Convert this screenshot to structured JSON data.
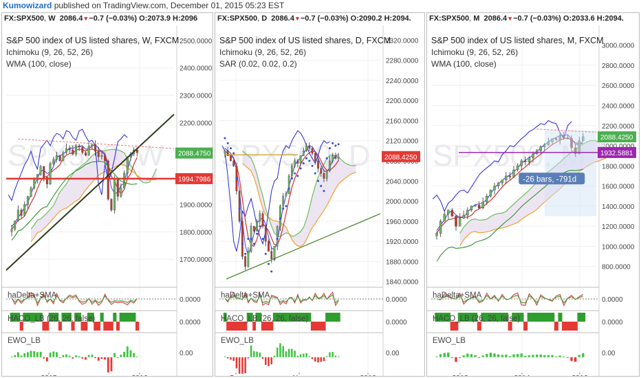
{
  "header": {
    "author": "Kumowizard",
    "published": "published on TradingView.com, December 01, 2015 05:23 EST"
  },
  "chart_data": [
    {
      "type": "candlestick",
      "symbol": "FX:SPX500",
      "timeframe": "W",
      "last": "2086.4",
      "change": "−0.7 (−0.03%)",
      "open": "2073.9",
      "high": "2096",
      "title": "S&P 500 index of US listed shares, W, FXCM",
      "indicators": [
        "Ichimoku (9, 26, 52, 26)",
        "WMA (100, close)"
      ],
      "watermark": "SPX500, W",
      "ylim": [
        1600,
        2520
      ],
      "yticks": [
        1700,
        1800,
        1900,
        2000,
        2100,
        2200,
        2300,
        2400,
        2500
      ],
      "ytick_labels": [
        "1700.0000",
        "1800.0000",
        "1900.0000",
        "2000.0000",
        "2100.0000",
        "2200.0000",
        "2300.0000",
        "2400.0000",
        "2500.0000"
      ],
      "xticks": [
        "2015",
        "2016"
      ],
      "price_label": {
        "value": "2088.4750",
        "color": "#4caf50"
      },
      "level_label": {
        "value": "1994.7986",
        "color": "#e53935"
      },
      "close_series": [
        1810,
        1840,
        1880,
        1860,
        1900,
        1930,
        1960,
        1990,
        2010,
        2040,
        2000,
        1975,
        2050,
        2065,
        2080,
        2060,
        2090,
        2105,
        2100,
        2085,
        2115,
        2110,
        2090,
        2080,
        2115,
        2120,
        2095,
        2075,
        2080,
        2060,
        1920,
        1880,
        1995,
        1930,
        1960,
        2015,
        2075,
        2085,
        2100,
        2090
      ],
      "sub_panels": [
        {
          "name": "haDelta+SMA",
          "ytick": "0.0000"
        },
        {
          "name": "HACO_LB (26, 26, false)",
          "ytick": "0.0000"
        },
        {
          "name": "EWO_LB",
          "ytick": "0.00"
        }
      ]
    },
    {
      "type": "candlestick",
      "symbol": "FX:SPX500",
      "timeframe": "D",
      "last": "2086.4",
      "change": "−0.7 (−0.03%)",
      "open": "2090.2",
      "high": "2094.",
      "title": "S&P 500 index of US listed shares, D, FXCM",
      "indicators": [
        "Ichimoku (9, 26, 52, 26)",
        "SAR (0.02, 0.02, 0.2)"
      ],
      "watermark": "SPX500, D",
      "ylim": [
        1830,
        2330
      ],
      "yticks": [
        1840,
        1880,
        1920,
        1960,
        2000,
        2040,
        2080,
        2120,
        2160,
        2200,
        2240,
        2280,
        2320
      ],
      "ytick_labels": [
        "1840.0000",
        "1880.0000",
        "1920.0000",
        "1960.0000",
        "2000.0000",
        "2040.0000",
        "2080.0000",
        "2120.0000",
        "2160.0000",
        "2200.0000",
        "2240.0000",
        "2280.0000",
        "2320.0000"
      ],
      "xticks": [
        "Sep",
        "Nov",
        "2016"
      ],
      "price_label": {
        "value": "2088.4250",
        "color": "#e53935"
      },
      "close_series": [
        2100,
        2090,
        2080,
        2070,
        2020,
        1960,
        1890,
        1870,
        1900,
        1950,
        1940,
        1960,
        1975,
        1950,
        1920,
        1900,
        1885,
        1910,
        1950,
        1990,
        2010,
        2015,
        2050,
        2070,
        2080,
        2075,
        2090,
        2100,
        2110,
        2105,
        2095,
        2080,
        2065,
        2055,
        2045,
        2060,
        2080,
        2090,
        2085,
        2088
      ]
    },
    {
      "type": "candlestick",
      "symbol": "FX:SPX500",
      "timeframe": "M",
      "last": "2086.4",
      "change": "−0.7 (−0.03%)",
      "open": "2033.6",
      "high": "2094.",
      "title": "S&P 500 index of US listed shares, M, FXCM",
      "indicators": [
        "Ichimoku (9, 26, 52, 26)",
        "WMA (100, close)"
      ],
      "watermark": "SPX500, M",
      "ylim": [
        600,
        3100
      ],
      "yticks": [
        800,
        1000,
        1200,
        1400,
        1600,
        1800,
        2000,
        2200,
        2400,
        2600,
        2800,
        3000
      ],
      "ytick_labels": [
        "800.0000",
        "1000.0000",
        "1200.0000",
        "1400.0000",
        "1600.0000",
        "1800.0000",
        "2000.0000",
        "2200.0000",
        "2400.0000",
        "2600.0000",
        "2800.0000",
        "3000.0000"
      ],
      "xticks": [
        "2012",
        "2014",
        "2016"
      ],
      "price_label": {
        "value": "2088.4250",
        "color": "#4caf50"
      },
      "level_label": {
        "value": "1932.5881",
        "color": "#9c27b0"
      },
      "measure_label": "-26 bars, -791d",
      "close_series": [
        1130,
        1250,
        1320,
        1360,
        1300,
        1200,
        1280,
        1310,
        1360,
        1400,
        1410,
        1380,
        1440,
        1500,
        1560,
        1600,
        1630,
        1660,
        1700,
        1690,
        1760,
        1800,
        1850,
        1840,
        1880,
        1920,
        1950,
        1990,
        2010,
        2040,
        2070,
        2060,
        2100,
        2080,
        2070,
        1980,
        1920,
        2050,
        2090
      ]
    }
  ]
}
